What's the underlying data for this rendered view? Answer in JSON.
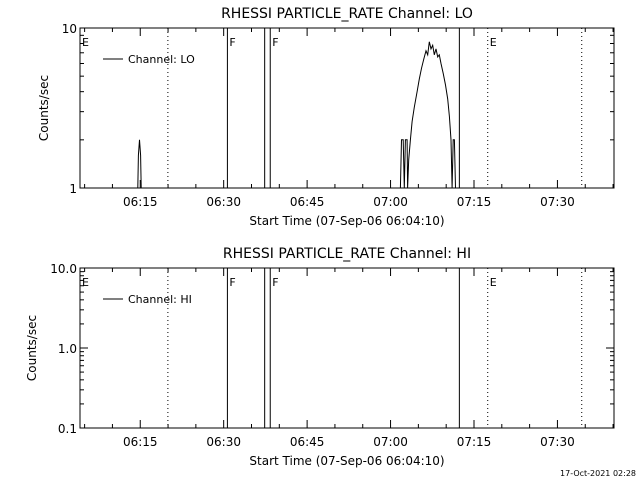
{
  "footer": {
    "timestamp": "17-Oct-2021 02:28"
  },
  "chart_data": [
    {
      "type": "line",
      "title": "RHESSI PARTICLE_RATE Channel: LO",
      "xlabel": "Start Time (07-Sep-06 06:04:10)",
      "ylabel": "Counts/sec",
      "yscale": "log",
      "xlim_minutes_since_start": [
        0,
        96
      ],
      "ylim": [
        1,
        10
      ],
      "yticks": [
        {
          "value": 1,
          "label": "1"
        },
        {
          "value": 10,
          "label": "10"
        }
      ],
      "xticks": [
        {
          "t": 10.83,
          "label": "06:15"
        },
        {
          "t": 25.83,
          "label": "06:30"
        },
        {
          "t": 40.83,
          "label": "06:45"
        },
        {
          "t": 55.83,
          "label": "07:00"
        },
        {
          "t": 70.83,
          "label": "07:15"
        },
        {
          "t": 85.83,
          "label": "07:30"
        }
      ],
      "legend": "Channel: LO",
      "legend_position": "top-left",
      "markers": [
        {
          "t": 0.0,
          "style": "none",
          "label": "E"
        },
        {
          "t": 15.8,
          "style": "dotted",
          "label": ""
        },
        {
          "t": 26.5,
          "style": "solid",
          "label": "F"
        },
        {
          "t": 33.2,
          "style": "solid",
          "label": ""
        },
        {
          "t": 34.2,
          "style": "solid",
          "label": "F"
        },
        {
          "t": 68.2,
          "style": "solid",
          "label": ""
        },
        {
          "t": 73.3,
          "style": "dotted",
          "label": "E"
        },
        {
          "t": 90.2,
          "style": "dotted",
          "label": ""
        }
      ],
      "series": [
        {
          "name": "Channel: LO",
          "points": [
            [
              10.4,
              1
            ],
            [
              10.5,
              1.6
            ],
            [
              10.7,
              2
            ],
            [
              10.9,
              1.6
            ],
            [
              11.0,
              1
            ],
            [
              57.6,
              1
            ],
            [
              57.8,
              2
            ],
            [
              58.1,
              2
            ],
            [
              58.3,
              1
            ],
            [
              58.5,
              2
            ],
            [
              58.8,
              2
            ],
            [
              58.9,
              1
            ],
            [
              59.1,
              1.5
            ],
            [
              59.4,
              2
            ],
            [
              59.7,
              2.6
            ],
            [
              60.1,
              3.2
            ],
            [
              60.6,
              4
            ],
            [
              61.0,
              4.8
            ],
            [
              61.4,
              5.6
            ],
            [
              61.8,
              6.4
            ],
            [
              62.2,
              7.2
            ],
            [
              62.5,
              6.8
            ],
            [
              62.8,
              8.2
            ],
            [
              63.1,
              7.4
            ],
            [
              63.4,
              7.8
            ],
            [
              63.7,
              6.8
            ],
            [
              64.0,
              7.4
            ],
            [
              64.3,
              6.6
            ],
            [
              64.6,
              6.8
            ],
            [
              64.9,
              6.0
            ],
            [
              65.3,
              5.2
            ],
            [
              65.7,
              4.4
            ],
            [
              66.1,
              3.6
            ],
            [
              66.4,
              2.8
            ],
            [
              66.7,
              2
            ],
            [
              66.9,
              1
            ],
            [
              67.1,
              2
            ],
            [
              67.3,
              2
            ],
            [
              67.5,
              1
            ]
          ]
        }
      ]
    },
    {
      "type": "line",
      "title": "RHESSI PARTICLE_RATE Channel: HI",
      "xlabel": "Start Time (07-Sep-06 06:04:10)",
      "ylabel": "Counts/sec",
      "yscale": "log",
      "xlim_minutes_since_start": [
        0,
        96
      ],
      "ylim": [
        0.1,
        10
      ],
      "yticks": [
        {
          "value": 0.1,
          "label": "0.1"
        },
        {
          "value": 1,
          "label": "1.0"
        },
        {
          "value": 10,
          "label": "10.0"
        }
      ],
      "xticks": [
        {
          "t": 10.83,
          "label": "06:15"
        },
        {
          "t": 25.83,
          "label": "06:30"
        },
        {
          "t": 40.83,
          "label": "06:45"
        },
        {
          "t": 55.83,
          "label": "07:00"
        },
        {
          "t": 70.83,
          "label": "07:15"
        },
        {
          "t": 85.83,
          "label": "07:30"
        }
      ],
      "legend": "Channel: HI",
      "legend_position": "top-left",
      "markers": [
        {
          "t": 0.0,
          "style": "none",
          "label": "E"
        },
        {
          "t": 15.8,
          "style": "dotted",
          "label": ""
        },
        {
          "t": 26.5,
          "style": "solid",
          "label": "F"
        },
        {
          "t": 33.2,
          "style": "solid",
          "label": ""
        },
        {
          "t": 34.2,
          "style": "solid",
          "label": "F"
        },
        {
          "t": 68.2,
          "style": "solid",
          "label": ""
        },
        {
          "t": 73.3,
          "style": "dotted",
          "label": "E"
        },
        {
          "t": 90.2,
          "style": "dotted",
          "label": ""
        }
      ],
      "series": [
        {
          "name": "Channel: HI",
          "points": []
        }
      ]
    }
  ]
}
